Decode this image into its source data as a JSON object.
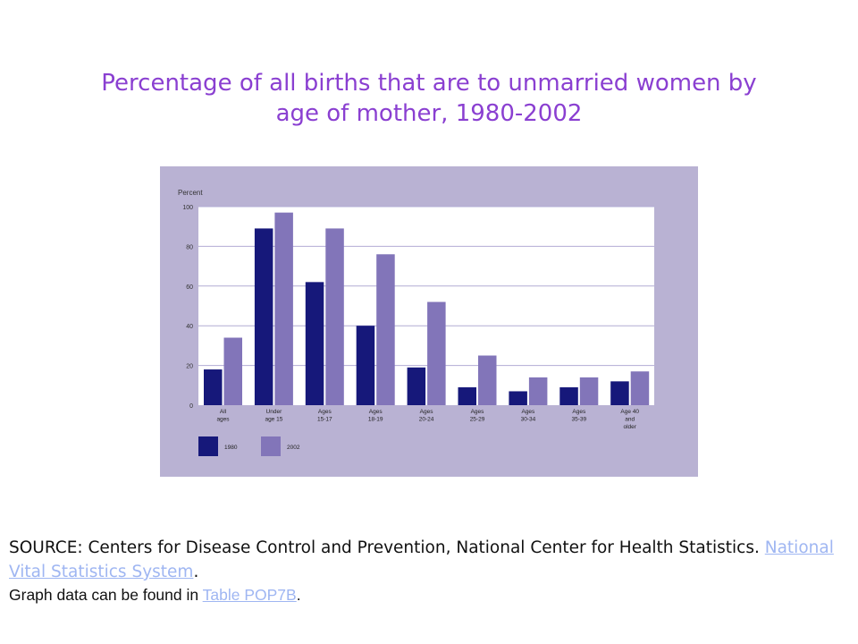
{
  "title_line1": "Percentage of all births that are to unmarried women by",
  "title_line2": "age of mother, 1980-2002",
  "colors": {
    "panel": "#b9b2d3",
    "plot": "#ffffff",
    "grid": "#b2acd4",
    "series_1980": "#16187a",
    "series_2002": "#8275b9",
    "title": "#8a3fd1",
    "link": "#9fb6f2"
  },
  "chart_data": {
    "type": "bar",
    "title": "Percentage of all births that are to unmarried women by age of mother, 1980-2002",
    "ylabel": "Percent",
    "xlabel": "",
    "ylim": [
      0,
      100
    ],
    "yticks": [
      0,
      20,
      40,
      60,
      80,
      100
    ],
    "grid": true,
    "legend_position": "bottom-left",
    "categories": [
      [
        "All",
        "ages"
      ],
      [
        "Under",
        "age 15"
      ],
      [
        "Ages",
        "15-17"
      ],
      [
        "Ages",
        "18-19"
      ],
      [
        "Ages",
        "20-24"
      ],
      [
        "Ages",
        "25-29"
      ],
      [
        "Ages",
        "30-34"
      ],
      [
        "Ages",
        "35-39"
      ],
      [
        "Age 40",
        "and",
        "older"
      ]
    ],
    "series": [
      {
        "name": "1980",
        "values": [
          18,
          89,
          62,
          40,
          19,
          9,
          7,
          9,
          12
        ]
      },
      {
        "name": "2002",
        "values": [
          34,
          97,
          89,
          76,
          52,
          25,
          14,
          14,
          17
        ]
      }
    ]
  },
  "source": {
    "prefix": "SOURCE: Centers for Disease Control and Prevention, National Center for Health Statistics. ",
    "link_text": "National Vital Statistics System",
    "suffix": "."
  },
  "note": {
    "prefix": "Graph data can be found in ",
    "link_text": "Table POP7B",
    "suffix": "."
  }
}
